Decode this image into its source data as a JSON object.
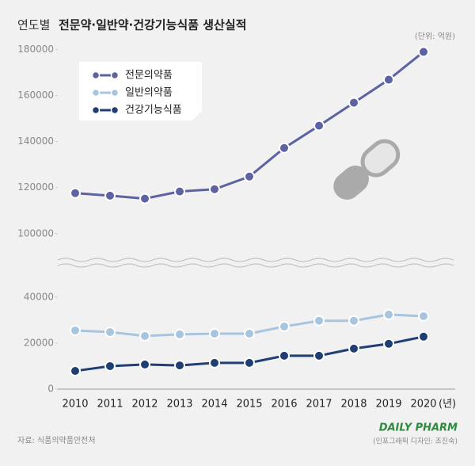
{
  "chart_data": {
    "type": "line",
    "title_prefix": "연도별",
    "title": "전문약·일반약·건강기능식품 생산실적",
    "unit_note": "(단위: 억원)",
    "categories": [
      "2010",
      "2011",
      "2012",
      "2013",
      "2014",
      "2015",
      "2016",
      "2017",
      "2018",
      "2019",
      "2020"
    ],
    "x_unit": "(년)",
    "series": [
      {
        "name": "전문의약품",
        "color": "#5d62a3",
        "values": [
          117600,
          116500,
          115200,
          118300,
          119300,
          124800,
          137200,
          146900,
          156900,
          166900,
          179000
        ]
      },
      {
        "name": "일반의약품",
        "color": "#a8c5e0",
        "values": [
          25500,
          24800,
          23100,
          23800,
          24100,
          24100,
          27200,
          29700,
          29700,
          32400,
          31700
        ]
      },
      {
        "name": "건강기능식품",
        "color": "#1f3f74",
        "values": [
          7900,
          10000,
          10700,
          10300,
          11400,
          11400,
          14500,
          14500,
          17600,
          19700,
          22800
        ]
      }
    ],
    "ylim_lower": [
      0,
      52000
    ],
    "ylim_upper": [
      92000,
      185000
    ],
    "yticks": [
      0,
      20000,
      40000,
      100000,
      120000,
      140000,
      160000,
      180000
    ],
    "legend": "upper-left",
    "source": "자료: 식품의약품안전처",
    "logo": "DAILY PHARM",
    "credit": "(인포그래픽 디자인: 조진숙)"
  }
}
